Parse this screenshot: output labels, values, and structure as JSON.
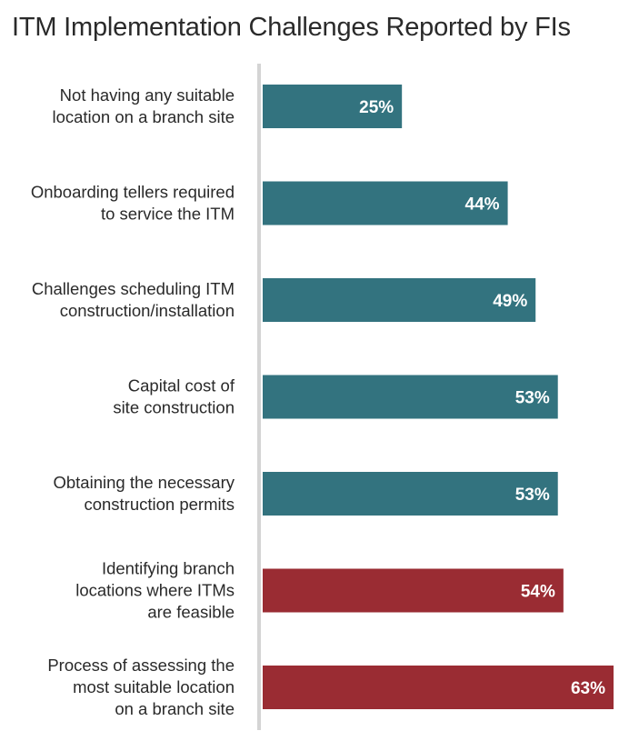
{
  "chart_data": {
    "type": "bar",
    "orientation": "horizontal",
    "title": "ITM Implementation Challenges Reported by FIs",
    "xlabel": "",
    "ylabel": "",
    "xlim": [
      0,
      63
    ],
    "grid": false,
    "legend": "none",
    "categories": [
      [
        "Not having any suitable",
        "location on a branch site"
      ],
      [
        "Onboarding tellers required",
        "to service the ITM"
      ],
      [
        "Challenges scheduling ITM",
        "construction/installation"
      ],
      [
        "Capital cost of",
        "site construction"
      ],
      [
        "Obtaining the necessary",
        "construction permits"
      ],
      [
        "Identifying branch",
        "locations where ITMs",
        "are feasible"
      ],
      [
        "Process of assessing the",
        "most suitable location",
        "on a branch site"
      ]
    ],
    "values": [
      25,
      44,
      49,
      53,
      53,
      54,
      63
    ],
    "value_labels": [
      "25%",
      "44%",
      "49%",
      "53%",
      "53%",
      "54%",
      "63%"
    ],
    "colors": [
      "#33737f",
      "#33737f",
      "#33737f",
      "#33737f",
      "#33737f",
      "#9a2c33",
      "#9a2c33"
    ],
    "axis_color": "#d4d4d4"
  }
}
